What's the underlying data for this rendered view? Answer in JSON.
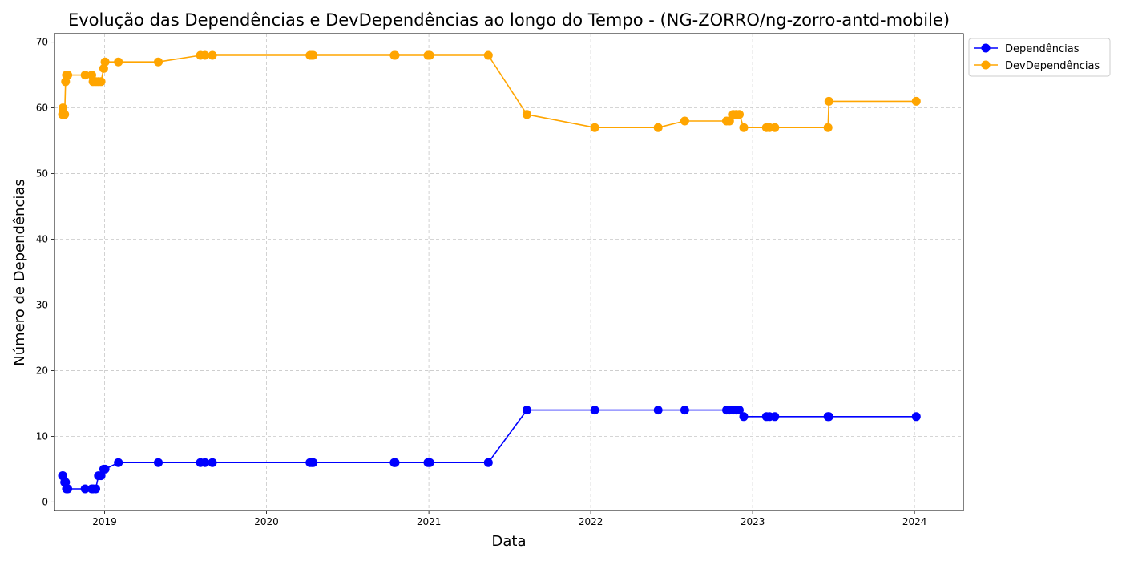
{
  "chart_data": {
    "type": "line",
    "title": "Evolução das Dependências e DevDependências ao longo do Tempo - (NG-ZORRO/ng-zorro-antd-mobile)",
    "xlabel": "Data",
    "ylabel": "Número de Dependências",
    "x_ticks": [
      "2019",
      "2020",
      "2021",
      "2022",
      "2023",
      "2024"
    ],
    "y_ticks": [
      0,
      10,
      20,
      30,
      40,
      50,
      60,
      70
    ],
    "xlim": [
      "2018-09-10",
      "2024-04-20"
    ],
    "ylim": [
      -1.3,
      71.3
    ],
    "grid": true,
    "legend_position": "upper-right-outside",
    "x": [
      "2018-09-28",
      "2018-09-29",
      "2018-10-03",
      "2018-10-05",
      "2018-10-07",
      "2018-10-10",
      "2018-11-18",
      "2018-12-03",
      "2018-12-06",
      "2018-12-12",
      "2018-12-18",
      "2018-12-24",
      "2018-12-30",
      "2019-01-02",
      "2019-02-01",
      "2019-05-02",
      "2019-08-05",
      "2019-08-15",
      "2019-09-01",
      "2020-04-08",
      "2020-04-12",
      "2020-04-15",
      "2020-10-15",
      "2020-10-17",
      "2020-12-30",
      "2021-01-03",
      "2021-05-15",
      "2021-08-10",
      "2022-01-10",
      "2022-06-02",
      "2022-08-01",
      "2022-11-03",
      "2022-11-10",
      "2022-11-18",
      "2022-11-25",
      "2022-12-02",
      "2022-12-12",
      "2023-02-01",
      "2023-02-08",
      "2023-02-20",
      "2023-06-20",
      "2023-06-22",
      "2024-01-05"
    ],
    "series": [
      {
        "name": "Dependências",
        "color": "#0000ff",
        "values": [
          4,
          4,
          3,
          3,
          2,
          2,
          2,
          2,
          2,
          2,
          4,
          4,
          5,
          5,
          6,
          6,
          6,
          6,
          6,
          6,
          6,
          6,
          6,
          6,
          6,
          6,
          6,
          14,
          14,
          14,
          14,
          14,
          14,
          14,
          14,
          14,
          13,
          13,
          13,
          13,
          13,
          13,
          13
        ]
      },
      {
        "name": "DevDependências",
        "color": "#ffa500",
        "values": [
          59,
          60,
          59,
          64,
          65,
          65,
          65,
          65,
          64,
          64,
          64,
          64,
          66,
          67,
          67,
          67,
          68,
          68,
          68,
          68,
          68,
          68,
          68,
          68,
          68,
          68,
          68,
          59,
          57,
          57,
          58,
          58,
          58,
          59,
          59,
          59,
          57,
          57,
          57,
          57,
          57,
          61,
          61
        ]
      }
    ]
  }
}
